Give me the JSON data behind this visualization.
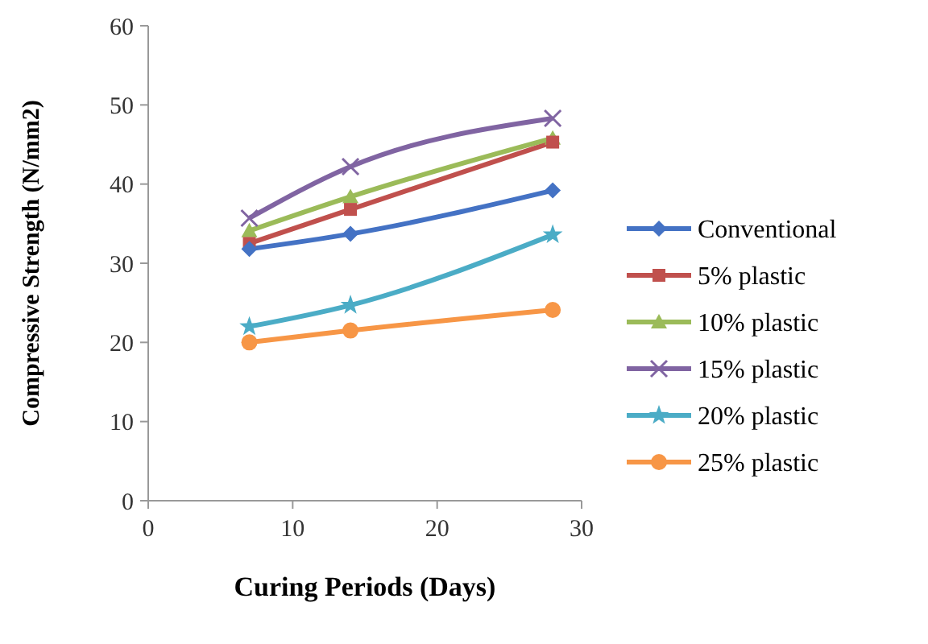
{
  "chart_data": {
    "type": "line",
    "xlabel": "Curing Periods (Days)",
    "ylabel": "Compressive Strength (N/mm2)",
    "x": [
      7,
      14,
      28
    ],
    "xlim": [
      0,
      30
    ],
    "xticks": [
      0,
      10,
      20,
      30
    ],
    "ylim": [
      0,
      60
    ],
    "yticks": [
      0,
      10,
      20,
      30,
      40,
      50,
      60
    ],
    "legend": "right",
    "grid": false,
    "series": [
      {
        "name": "Conventional",
        "color": "#4472c4",
        "marker": "diamond",
        "values": [
          31.8,
          33.7,
          39.2
        ]
      },
      {
        "name": "5% plastic",
        "color": "#c0504d",
        "marker": "square",
        "values": [
          32.5,
          36.8,
          45.3
        ]
      },
      {
        "name": "10% plastic",
        "color": "#9bbb59",
        "marker": "triangle",
        "values": [
          34.1,
          38.4,
          45.8
        ]
      },
      {
        "name": "15% plastic",
        "color": "#8064a2",
        "marker": "cross",
        "values": [
          35.7,
          42.2,
          48.3
        ]
      },
      {
        "name": "20% plastic",
        "color": "#4bacc6",
        "marker": "star",
        "values": [
          22,
          24.7,
          33.6
        ]
      },
      {
        "name": "25% plastic",
        "color": "#f79646",
        "marker": "circle",
        "values": [
          20,
          21.5,
          24.1
        ]
      }
    ]
  }
}
